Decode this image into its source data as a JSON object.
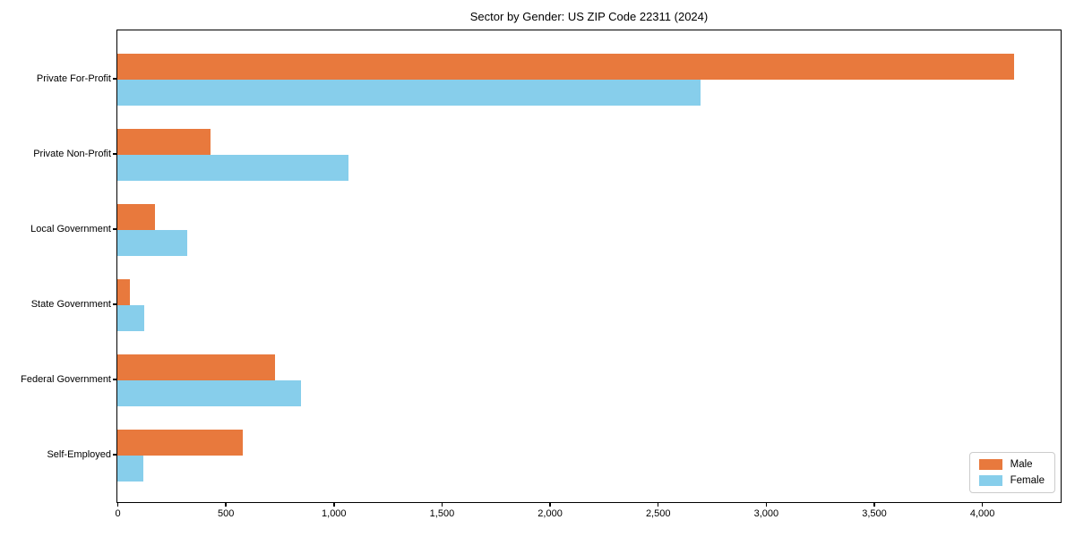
{
  "title": "Sector by Gender: US ZIP Code 22311 (2024)",
  "chart_data": {
    "type": "bar",
    "orientation": "horizontal",
    "title": "Sector by Gender: US ZIP Code 22311 (2024)",
    "categories": [
      "Private For-Profit",
      "Private Non-Profit",
      "Local Government",
      "State Government",
      "Federal Government",
      "Self-Employed"
    ],
    "series": [
      {
        "name": "Male",
        "color": "#e8793d",
        "values": [
          4150,
          430,
          175,
          60,
          730,
          580
        ]
      },
      {
        "name": "Female",
        "color": "#87ceeb",
        "values": [
          2700,
          1070,
          325,
          125,
          850,
          120
        ]
      }
    ],
    "xlabel": "",
    "ylabel": "",
    "xlim": [
      0,
      4360
    ],
    "xticks": [
      0,
      500,
      1000,
      1500,
      2000,
      2500,
      3000,
      3500,
      4000
    ],
    "xtick_labels": [
      "0",
      "500",
      "1,000",
      "1,500",
      "2,000",
      "2,500",
      "3,000",
      "3,500",
      "4,000"
    ],
    "grid": false,
    "background": "#ffffff",
    "spine_color": "#000000",
    "legend_position": "lower right"
  }
}
